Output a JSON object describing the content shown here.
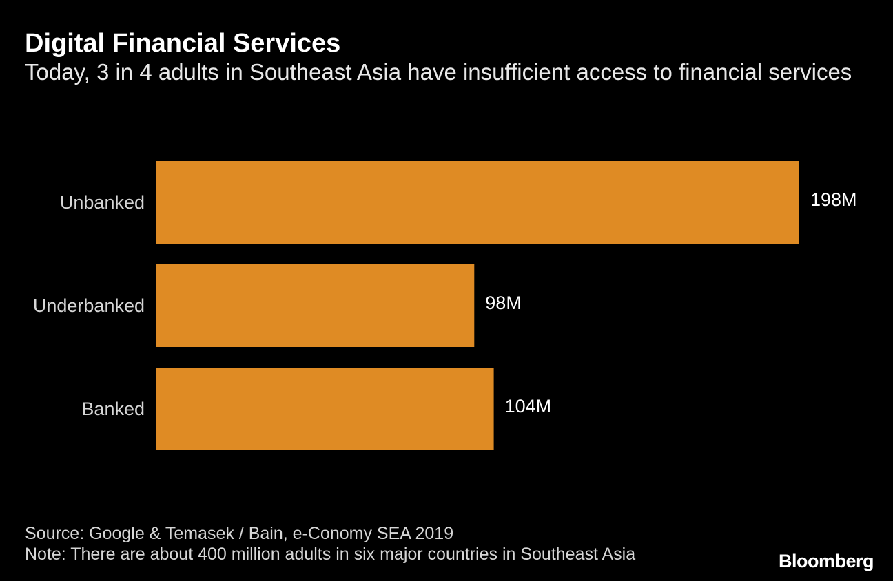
{
  "header": {
    "title": "Digital Financial Services",
    "subtitle": "Today, 3 in 4 adults in Southeast Asia have insufficient access to financial services"
  },
  "footer": {
    "source": "Source: Google & Temasek / Bain, e-Conomy SEA 2019",
    "note": "Note: There are about 400 million adults in six major countries in Southeast Asia"
  },
  "brand": {
    "logo_text": "Bloomberg"
  },
  "chart_data": {
    "type": "bar",
    "orientation": "horizontal",
    "title": "Digital Financial Services",
    "subtitle": "Today, 3 in 4 adults in Southeast Asia have insufficient access to financial services",
    "categories": [
      "Unbanked",
      "Underbanked",
      "Banked"
    ],
    "values": [
      198,
      98,
      104
    ],
    "value_labels": [
      "198M",
      "98M",
      "104M"
    ],
    "unit": "M",
    "xlabel": "",
    "ylabel": "",
    "xlim": [
      0,
      198
    ],
    "grid": false,
    "legend": "none",
    "bar_color": "#df8b24",
    "background_color": "#000000"
  }
}
